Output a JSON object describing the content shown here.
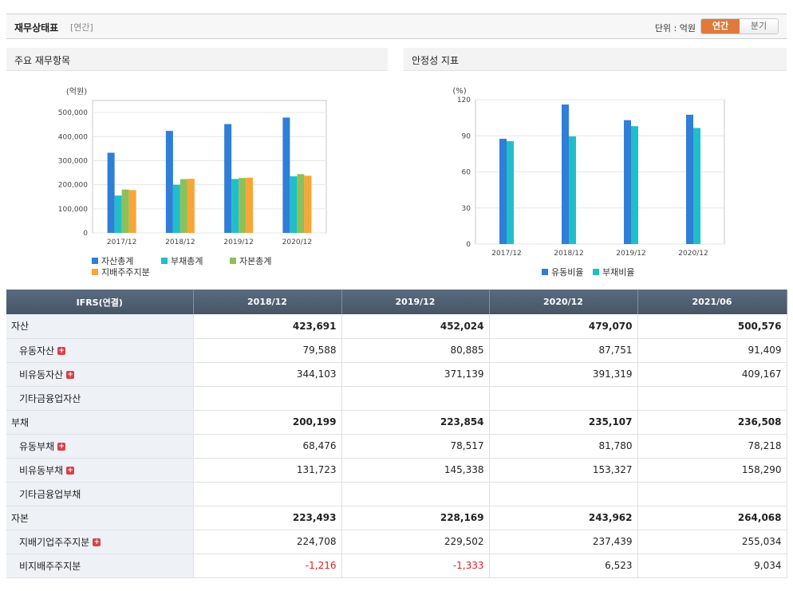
{
  "header": {
    "title": "재무상태표",
    "subtitle": "[연간]",
    "unit_label": "단위 : 억원",
    "toggle": {
      "annual": "연간",
      "quarterly": "분기"
    }
  },
  "panels": {
    "left_title": "주요 재무항목",
    "right_title": "안정성 지표"
  },
  "colors": {
    "blue": "#2f7ed8",
    "teal": "#1fbfc9",
    "green": "#8dc05a",
    "orange": "#f7a637"
  },
  "chart_data": [
    {
      "type": "bar",
      "title": "주요 재무항목",
      "ylabel": "(억원)",
      "categories": [
        "2017/12",
        "2018/12",
        "2019/12",
        "2020/12"
      ],
      "ylim": [
        0,
        550000
      ],
      "yticks": [
        0,
        100000,
        200000,
        300000,
        400000,
        500000
      ],
      "ytick_labels": [
        "0",
        "100,000",
        "200,000",
        "300,000",
        "400,000",
        "500,000"
      ],
      "grid": true,
      "series": [
        {
          "name": "자산총계",
          "color": "#2f7ed8",
          "values": [
            333000,
            423691,
            452024,
            479070
          ]
        },
        {
          "name": "부채총계",
          "color": "#1fbfc9",
          "values": [
            155000,
            200199,
            223854,
            235107
          ]
        },
        {
          "name": "자본총계",
          "color": "#8dc05a",
          "values": [
            180000,
            223493,
            228169,
            243962
          ]
        },
        {
          "name": "지배주주지분",
          "color": "#f7a637",
          "values": [
            178000,
            224708,
            229502,
            237439
          ]
        }
      ]
    },
    {
      "type": "bar",
      "title": "안정성 지표",
      "ylabel": "(%)",
      "categories": [
        "2017/12",
        "2018/12",
        "2019/12",
        "2020/12"
      ],
      "ylim": [
        0,
        120
      ],
      "yticks": [
        0,
        30,
        60,
        90,
        120
      ],
      "ytick_labels": [
        "0",
        "30",
        "60",
        "90",
        "120"
      ],
      "grid": true,
      "series": [
        {
          "name": "유동비율",
          "color": "#2f7ed8",
          "values": [
            87.5,
            116,
            103,
            107.5
          ]
        },
        {
          "name": "부채비율",
          "color": "#1fbfc9",
          "values": [
            85.5,
            89.5,
            98,
            96.5
          ]
        }
      ]
    }
  ],
  "table": {
    "header": [
      "IFRS(연결)",
      "2018/12",
      "2019/12",
      "2020/12",
      "2021/06"
    ],
    "rows": [
      {
        "label": "자산",
        "level": 0,
        "expand": false,
        "values": [
          "423,691",
          "452,024",
          "479,070",
          "500,576"
        ]
      },
      {
        "label": "유동자산",
        "level": 1,
        "expand": true,
        "values": [
          "79,588",
          "80,885",
          "87,751",
          "91,409"
        ]
      },
      {
        "label": "비유동자산",
        "level": 1,
        "expand": true,
        "values": [
          "344,103",
          "371,139",
          "391,319",
          "409,167"
        ]
      },
      {
        "label": "기타금융업자산",
        "level": 1,
        "expand": false,
        "values": [
          "",
          "",
          "",
          ""
        ]
      },
      {
        "label": "부채",
        "level": 0,
        "expand": false,
        "values": [
          "200,199",
          "223,854",
          "235,107",
          "236,508"
        ]
      },
      {
        "label": "유동부채",
        "level": 1,
        "expand": true,
        "values": [
          "68,476",
          "78,517",
          "81,780",
          "78,218"
        ]
      },
      {
        "label": "비유동부채",
        "level": 1,
        "expand": true,
        "values": [
          "131,723",
          "145,338",
          "153,327",
          "158,290"
        ]
      },
      {
        "label": "기타금융업부채",
        "level": 1,
        "expand": false,
        "values": [
          "",
          "",
          "",
          ""
        ]
      },
      {
        "label": "자본",
        "level": 0,
        "expand": false,
        "values": [
          "223,493",
          "228,169",
          "243,962",
          "264,068"
        ]
      },
      {
        "label": "지배기업주주지분",
        "level": 1,
        "expand": true,
        "values": [
          "224,708",
          "229,502",
          "237,439",
          "255,034"
        ]
      },
      {
        "label": "비지배주주지분",
        "level": 1,
        "expand": false,
        "values": [
          "-1,216",
          "-1,333",
          "6,523",
          "9,034"
        ]
      }
    ]
  }
}
